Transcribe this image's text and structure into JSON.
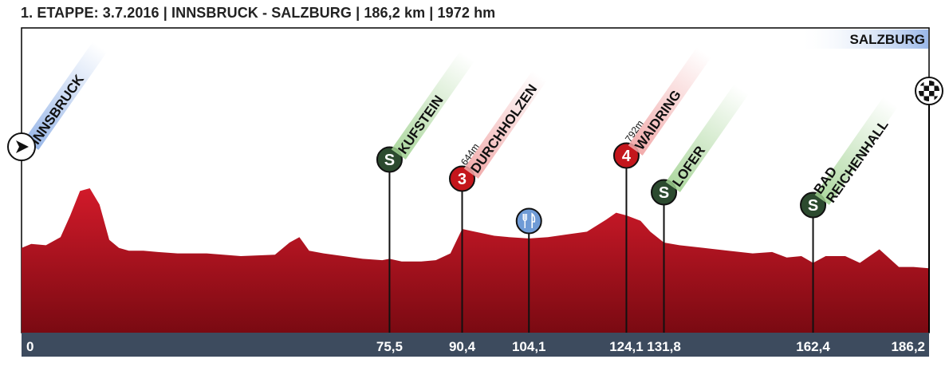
{
  "title": "1. ETAPPE: 3.7.2016 | INNSBRUCK - SALZBURG | 186,2 km | 1972 hm",
  "finish_label": "SALZBURG",
  "colors": {
    "profile": "#b0101c",
    "profile_top": "#d21a2a",
    "axis_bar": "#3d4b5e",
    "sprint_badge": "#2c4a2f",
    "climb_badge": "#c4161c",
    "feed_badge": "#6f9bd6",
    "sprint_band": "#9fd18f",
    "climb_band": "#f0a3a3",
    "city_band": "#8fb0e6"
  },
  "chart_data": {
    "type": "area",
    "x_unit": "km",
    "xlim": [
      0,
      186.2
    ],
    "ticks": [
      "0",
      "75,5",
      "90,4",
      "104,1",
      "124,1",
      "131,8",
      "162,4",
      "186,2"
    ],
    "tick_values": [
      0,
      75.5,
      90.4,
      104.1,
      124.1,
      131.8,
      162.4,
      186.2
    ],
    "profile": {
      "x": [
        0,
        2,
        5,
        8,
        10,
        12,
        14,
        16,
        18,
        20,
        22,
        25,
        28,
        32,
        38,
        45,
        52,
        55,
        57,
        59,
        62,
        66,
        70,
        74,
        75.5,
        78,
        82,
        85,
        88,
        90.4,
        93,
        97,
        100,
        104.1,
        108,
        112,
        116,
        120,
        122,
        124.1,
        127,
        129,
        131.8,
        135,
        140,
        145,
        150,
        154,
        157,
        160,
        162.4,
        165,
        169,
        172,
        176,
        180,
        183,
        186.2
      ],
      "y": [
        0.36,
        0.39,
        0.38,
        0.44,
        0.6,
        0.78,
        0.8,
        0.68,
        0.42,
        0.36,
        0.34,
        0.34,
        0.33,
        0.32,
        0.32,
        0.3,
        0.31,
        0.4,
        0.44,
        0.34,
        0.32,
        0.3,
        0.28,
        0.27,
        0.28,
        0.26,
        0.26,
        0.27,
        0.32,
        0.5,
        0.48,
        0.45,
        0.44,
        0.43,
        0.44,
        0.46,
        0.48,
        0.57,
        0.62,
        0.6,
        0.56,
        0.48,
        0.4,
        0.38,
        0.36,
        0.34,
        0.32,
        0.33,
        0.29,
        0.3,
        0.25,
        0.3,
        0.3,
        0.25,
        0.35,
        0.22,
        0.22,
        0.21
      ],
      "y_unit": "relative elevation (0-1)"
    },
    "markers": [
      {
        "km": 0,
        "type": "start",
        "label": "INNSBRUCK"
      },
      {
        "km": 75.5,
        "type": "sprint",
        "badge": "S",
        "label": "KUFSTEIN",
        "extra": ""
      },
      {
        "km": 90.4,
        "type": "climb",
        "badge": "3",
        "label": "DURCHHOLZEN",
        "extra": "644m"
      },
      {
        "km": 104.1,
        "type": "feed",
        "badge": "",
        "label": "",
        "extra": ""
      },
      {
        "km": 124.1,
        "type": "climb",
        "badge": "4",
        "label": "WAIDRING",
        "extra": "792m"
      },
      {
        "km": 131.8,
        "type": "sprint",
        "badge": "S",
        "label": "LOFER",
        "extra": ""
      },
      {
        "km": 162.4,
        "type": "sprint",
        "badge": "S",
        "label": "BAD REICHENHALL",
        "extra": ""
      },
      {
        "km": 186.2,
        "type": "finish",
        "label": "SALZBURG"
      }
    ]
  }
}
